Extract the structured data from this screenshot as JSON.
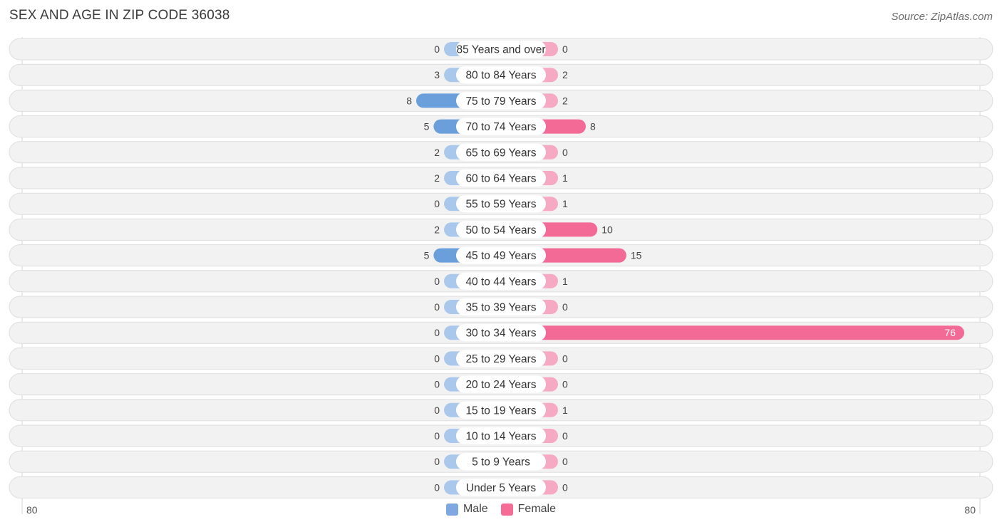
{
  "header": {
    "title": "SEX AND AGE IN ZIP CODE 36038",
    "source": "Source: ZipAtlas.com"
  },
  "axis": {
    "left_label": "80",
    "right_label": "80"
  },
  "legend": [
    {
      "label": "Male",
      "color": "#7fa8e0"
    },
    {
      "label": "Female",
      "color": "#f56c96"
    }
  ],
  "colors": {
    "male_light": "#aac8ec",
    "male_dark": "#6a9fdc",
    "female_light": "#f6a9c2",
    "female_dark": "#f36a96",
    "row_bg": "#f2f2f2",
    "row_border": "#dedede"
  },
  "chart_data": {
    "type": "bar",
    "orientation": "horizontal-diverging",
    "xlim": [
      -80,
      80
    ],
    "categories": [
      "85 Years and over",
      "80 to 84 Years",
      "75 to 79 Years",
      "70 to 74 Years",
      "65 to 69 Years",
      "60 to 64 Years",
      "55 to 59 Years",
      "50 to 54 Years",
      "45 to 49 Years",
      "40 to 44 Years",
      "35 to 39 Years",
      "30 to 34 Years",
      "25 to 29 Years",
      "20 to 24 Years",
      "15 to 19 Years",
      "10 to 14 Years",
      "5 to 9 Years",
      "Under 5 Years"
    ],
    "series": [
      {
        "name": "Male",
        "values": [
          0,
          3,
          8,
          5,
          2,
          2,
          0,
          2,
          5,
          0,
          0,
          0,
          0,
          0,
          0,
          0,
          0,
          0
        ]
      },
      {
        "name": "Female",
        "values": [
          0,
          2,
          2,
          8,
          0,
          1,
          1,
          10,
          15,
          1,
          0,
          76,
          0,
          0,
          1,
          0,
          0,
          0
        ]
      }
    ]
  }
}
